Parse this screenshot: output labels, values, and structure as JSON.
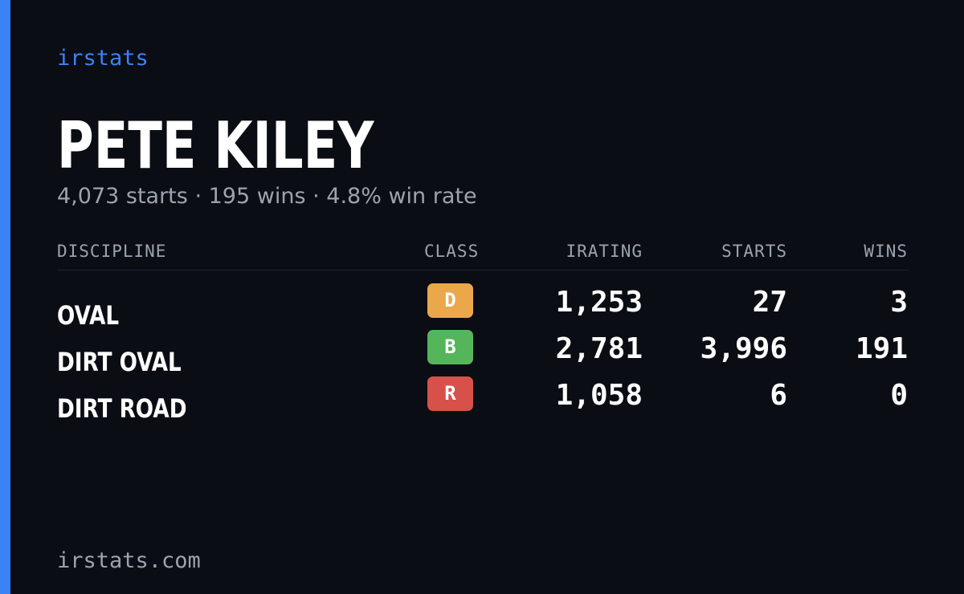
{
  "brand": {
    "name": "irstats",
    "footer_url": "irstats.com",
    "accent_color": "#3b82f6"
  },
  "player": {
    "name": "PETE KILEY",
    "starts_text": "4,073 starts",
    "wins_text": "195 wins",
    "win_rate_text": "4.8% win rate",
    "separator": "·"
  },
  "table": {
    "headers": {
      "discipline": "DISCIPLINE",
      "class": "CLASS",
      "irating": "IRATING",
      "starts": "STARTS",
      "wins": "WINS"
    },
    "rows": [
      {
        "discipline": "OVAL",
        "class": "D",
        "class_color": "#eaa84b",
        "irating": "1,253",
        "starts": "27",
        "wins": "3"
      },
      {
        "discipline": "DIRT OVAL",
        "class": "B",
        "class_color": "#55b55b",
        "irating": "2,781",
        "starts": "3,996",
        "wins": "191"
      },
      {
        "discipline": "DIRT ROAD",
        "class": "R",
        "class_color": "#d6514a",
        "irating": "1,058",
        "starts": "6",
        "wins": "0"
      }
    ]
  }
}
